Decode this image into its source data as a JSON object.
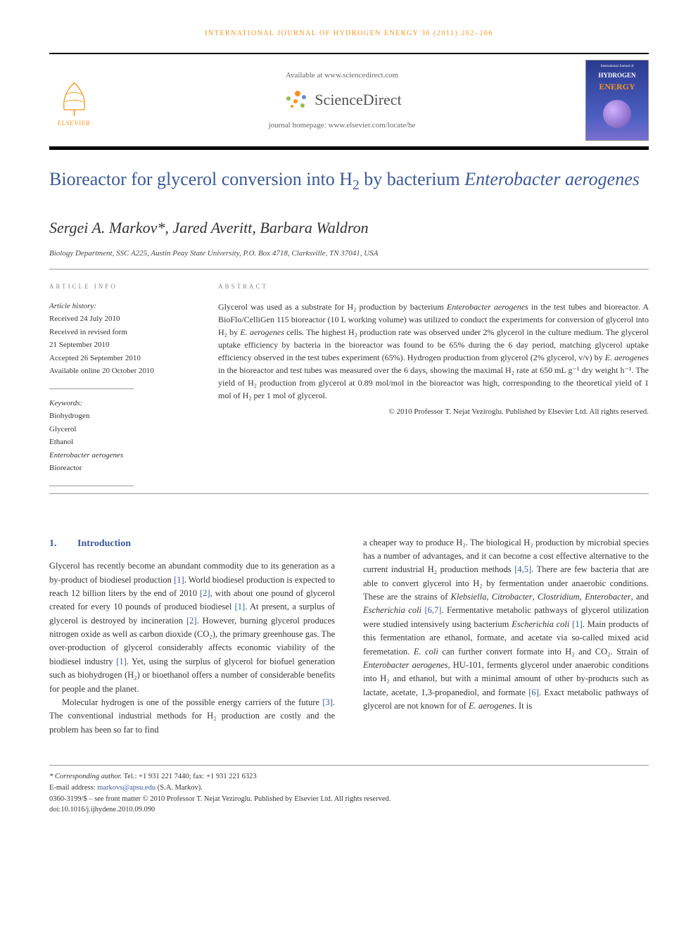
{
  "running_head": "INTERNATIONAL JOURNAL OF HYDROGEN ENERGY 36 (2011) 262–266",
  "masthead": {
    "available": "Available at www.sciencedirect.com",
    "sd_brand": "ScienceDirect",
    "homepage": "journal homepage: www.elsevier.com/locate/he",
    "elsevier": "ELSEVIER",
    "cover_line1": "International Journal of",
    "cover_line2": "HYDROGEN",
    "cover_line3": "ENERGY"
  },
  "title": {
    "line1": "Bioreactor for glycerol conversion into H",
    "sub": "2",
    "line2": " by bacterium ",
    "species": "Enterobacter aerogenes"
  },
  "authors": "Sergei A. Markov*, Jared Averitt, Barbara Waldron",
  "affiliation": "Biology Department, SSC A225, Austin Peay State University, P.O. Box 4718, Clarksville, TN 37041, USA",
  "info_heading": "ARTICLE INFO",
  "abstract_heading": "ABSTRACT",
  "history": {
    "label": "Article history:",
    "received": "Received 24 July 2010",
    "revised1": "Received in revised form",
    "revised2": "21 September 2010",
    "accepted": "Accepted 26 September 2010",
    "online": "Available online 20 October 2010"
  },
  "keywords": {
    "label": "Keywords:",
    "k1": "Biohydrogen",
    "k2": "Glycerol",
    "k3": "Ethanol",
    "k4": "Enterobacter aerogenes",
    "k5": "Bioreactor"
  },
  "abstract": "Glycerol was used as a substrate for H₂ production by bacterium Enterobacter aerogenes in the test tubes and bioreactor. A BioFlo/CelliGen 115 bioreactor (10 L working volume) was utilized to conduct the experiments for conversion of glycerol into H₂ by E. aerogenes cells. The highest H₂ production rate was observed under 2% glycerol in the culture medium. The glycerol uptake efficiency by bacteria in the bioreactor was found to be 65% during the 6 day period, matching glycerol uptake efficiency observed in the test tubes experiment (65%). Hydrogen production from glycerol (2% glycerol, v/v) by E. aerogenes in the bioreactor and test tubes was measured over the 6 days, showing the maximal H₂ rate at 650 mL g⁻¹ dry weight h⁻¹. The yield of H₂ production from glycerol at 0.89 mol/mol in the bioreactor was high, corresponding to the theoretical yield of 1 mol of H₂ per 1 mol of glycerol.",
  "copyright": "© 2010 Professor T. Nejat Veziroglu. Published by Elsevier Ltd. All rights reserved.",
  "section": {
    "num": "1.",
    "title": "Introduction"
  },
  "col1_p1": "Glycerol has recently become an abundant commodity due to its generation as a by-product of biodiesel production [1]. World biodiesel production is expected to reach 12 billion liters by the end of 2010 [2], with about one pound of glycerol created for every 10 pounds of produced biodiesel [1]. At present, a surplus of glycerol is destroyed by incineration [2]. However, burning glycerol produces nitrogen oxide as well as carbon dioxide (CO₂), the primary greenhouse gas. The over-production of glycerol considerably affects economic viability of the biodiesel industry [1]. Yet, using the surplus of glycerol for biofuel generation such as biohydrogen (H₂) or bioethanol offers a number of considerable benefits for people and the planet.",
  "col1_p2": "Molecular hydrogen is one of the possible energy carriers of the future [3]. The conventional industrial methods for H₂ production are costly and the problem has been so far to find",
  "col2_p1": "a cheaper way to produce H₂. The biological H₂ production by microbial species has a number of advantages, and it can become a cost effective alternative to the current industrial H₂ production methods [4,5]. There are few bacteria that are able to convert glycerol into H₂ by fermentation under anaerobic conditions. These are the strains of Klebsiella, Citrobacter, Clostridium, Enterobacter, and Escherichia coli [6,7]. Fermentative metabolic pathways of glycerol utilization were studied intensively using bacterium Escherichia coli [1]. Main products of this fermentation are ethanol, formate, and acetate via so-called mixed acid feremetation. E. coli can further convert formate into H₂ and CO₂. Strain of Enterobacter aerogenes, HU-101, ferments glycerol under anaerobic conditions into H₂ and ethanol, but with a minimal amount of other by-products such as lactate, acetate, 1,3-propanediol, and formate [6]. Exact metabolic pathways of glycerol are not known for of E. aerogenes. It is",
  "footer": {
    "corr_label": "* Corresponding author.",
    "corr_tel": " Tel.: +1 931 221 7440; fax: +1 931 221 6323",
    "email_label": "E-mail address: ",
    "email": "markovs@apsu.edu",
    "email_author": " (S.A. Markov).",
    "line1": "0360-3199/$ – see front matter © 2010 Professor T. Nejat Veziroglu. Published by Elsevier Ltd. All rights reserved.",
    "doi": "doi:10.1016/j.ijhydene.2010.09.090"
  },
  "colors": {
    "orange": "#f7941e",
    "blue": "#3b5998",
    "text": "#333333"
  }
}
